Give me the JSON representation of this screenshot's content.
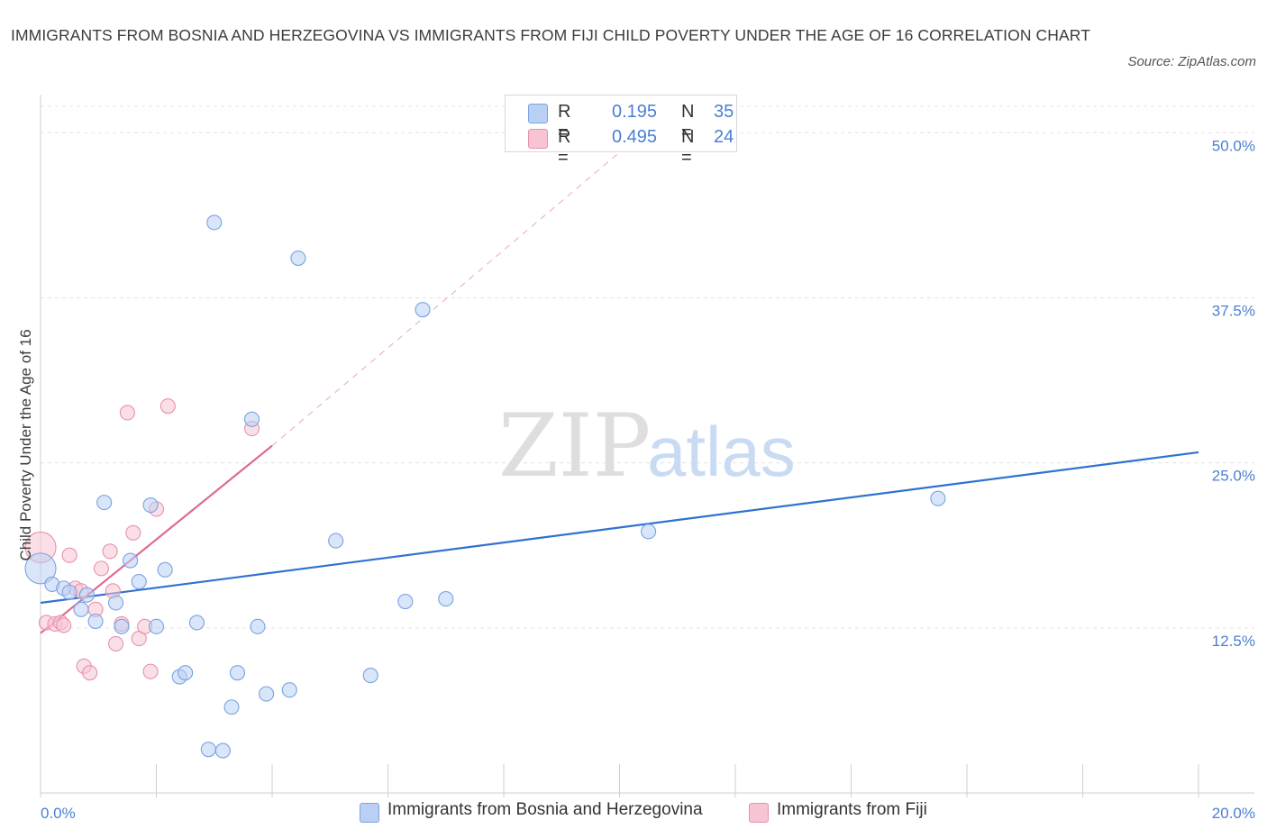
{
  "title": "IMMIGRANTS FROM BOSNIA AND HERZEGOVINA VS IMMIGRANTS FROM FIJI CHILD POVERTY UNDER THE AGE OF 16 CORRELATION CHART",
  "source": "Source: ZipAtlas.com",
  "legend": {
    "series1": {
      "r_label": "R =",
      "r_value": "0.195",
      "n_label": "N =",
      "n_value": "35"
    },
    "series2": {
      "r_label": "R =",
      "r_value": "0.495",
      "n_label": "N =",
      "n_value": "24"
    }
  },
  "bottom_legend": {
    "series1": "Immigrants from Bosnia and Herzegovina",
    "series2": "Immigrants from Fiji"
  },
  "watermark": {
    "zip": "ZIP",
    "atlas": "atlas"
  },
  "colors": {
    "series1_fill": "#b9d0f4",
    "series1_stroke": "#7aa3e0",
    "series1_line": "#2f72d0",
    "series2_fill": "#f6c4d3",
    "series2_stroke": "#e891ab",
    "series2_line": "#e06a92",
    "tick_text": "#4a7fd4"
  },
  "chart_data": {
    "type": "scatter",
    "title": "IMMIGRANTS FROM BOSNIA AND HERZEGOVINA VS IMMIGRANTS FROM FIJI CHILD POVERTY UNDER THE AGE OF 16 CORRELATION CHART",
    "xlabel": "",
    "ylabel": "Child Poverty Under the Age of 16",
    "xlim": [
      0,
      20
    ],
    "ylim": [
      0,
      52
    ],
    "x_tick_labels": [
      "0.0%",
      "20.0%"
    ],
    "y_ticks": [
      12.5,
      25.0,
      37.5,
      50.0
    ],
    "y_tick_labels": [
      "12.5%",
      "25.0%",
      "37.5%",
      "50.0%"
    ],
    "grid": true,
    "legend_position": "top-center",
    "series": [
      {
        "name": "Immigrants from Bosnia and Herzegovina",
        "r": 0.195,
        "n": 35,
        "trend": {
          "x": [
            0,
            20
          ],
          "y": [
            14.4,
            25.8
          ]
        },
        "points": [
          {
            "x": 0.0,
            "y": 17.0,
            "size": "large"
          },
          {
            "x": 0.2,
            "y": 15.8
          },
          {
            "x": 0.4,
            "y": 15.5
          },
          {
            "x": 0.5,
            "y": 15.2
          },
          {
            "x": 0.7,
            "y": 13.9
          },
          {
            "x": 0.8,
            "y": 15.0
          },
          {
            "x": 0.95,
            "y": 13.0
          },
          {
            "x": 1.1,
            "y": 22.0
          },
          {
            "x": 1.3,
            "y": 14.4
          },
          {
            "x": 1.4,
            "y": 12.6
          },
          {
            "x": 1.55,
            "y": 17.6
          },
          {
            "x": 1.7,
            "y": 16.0
          },
          {
            "x": 1.9,
            "y": 21.8
          },
          {
            "x": 2.0,
            "y": 12.6
          },
          {
            "x": 2.15,
            "y": 16.9
          },
          {
            "x": 2.4,
            "y": 8.8
          },
          {
            "x": 2.5,
            "y": 9.1
          },
          {
            "x": 2.7,
            "y": 12.9
          },
          {
            "x": 2.9,
            "y": 3.3
          },
          {
            "x": 3.0,
            "y": 43.2
          },
          {
            "x": 3.15,
            "y": 3.2
          },
          {
            "x": 3.3,
            "y": 6.5
          },
          {
            "x": 3.4,
            "y": 9.1
          },
          {
            "x": 3.65,
            "y": 28.3
          },
          {
            "x": 3.75,
            "y": 12.6
          },
          {
            "x": 3.9,
            "y": 7.5
          },
          {
            "x": 4.3,
            "y": 7.8
          },
          {
            "x": 4.45,
            "y": 40.5
          },
          {
            "x": 5.1,
            "y": 19.1
          },
          {
            "x": 5.7,
            "y": 8.9
          },
          {
            "x": 6.3,
            "y": 14.5
          },
          {
            "x": 6.6,
            "y": 36.6
          },
          {
            "x": 7.0,
            "y": 14.7
          },
          {
            "x": 10.5,
            "y": 19.8
          },
          {
            "x": 15.5,
            "y": 22.3
          }
        ]
      },
      {
        "name": "Immigrants from Fiji",
        "r": 0.495,
        "n": 24,
        "trend": {
          "x": [
            0,
            4.0
          ],
          "y": [
            12.1,
            26.3
          ]
        },
        "trend_extension": {
          "x": [
            4.0,
            10.4
          ],
          "y": [
            26.3,
            50.0
          ]
        },
        "points": [
          {
            "x": 0.0,
            "y": 18.6,
            "size": "large"
          },
          {
            "x": 0.1,
            "y": 12.9
          },
          {
            "x": 0.25,
            "y": 12.8
          },
          {
            "x": 0.35,
            "y": 12.9
          },
          {
            "x": 0.4,
            "y": 12.7
          },
          {
            "x": 0.5,
            "y": 18.0
          },
          {
            "x": 0.6,
            "y": 15.5
          },
          {
            "x": 0.7,
            "y": 15.3
          },
          {
            "x": 0.75,
            "y": 9.6
          },
          {
            "x": 0.85,
            "y": 9.1
          },
          {
            "x": 0.95,
            "y": 13.9
          },
          {
            "x": 1.05,
            "y": 17.0
          },
          {
            "x": 1.2,
            "y": 18.3
          },
          {
            "x": 1.25,
            "y": 15.3
          },
          {
            "x": 1.3,
            "y": 11.3
          },
          {
            "x": 1.4,
            "y": 12.8
          },
          {
            "x": 1.5,
            "y": 28.8
          },
          {
            "x": 1.6,
            "y": 19.7
          },
          {
            "x": 1.7,
            "y": 11.7
          },
          {
            "x": 1.8,
            "y": 12.6
          },
          {
            "x": 1.9,
            "y": 9.2
          },
          {
            "x": 2.0,
            "y": 21.5
          },
          {
            "x": 2.2,
            "y": 29.3
          },
          {
            "x": 3.65,
            "y": 27.6
          }
        ]
      }
    ]
  }
}
